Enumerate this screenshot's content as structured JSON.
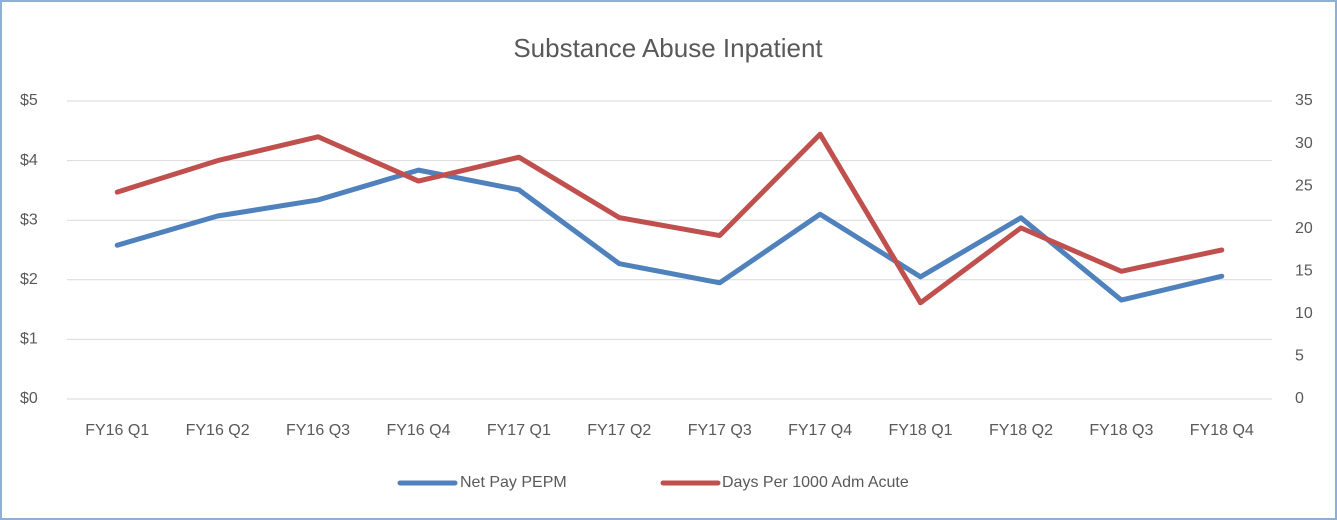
{
  "chart_data": {
    "type": "line",
    "title": "Substance Abuse Inpatient",
    "categories": [
      "FY16 Q1",
      "FY16 Q2",
      "FY16 Q3",
      "FY16 Q4",
      "FY17 Q1",
      "FY17 Q2",
      "FY17 Q3",
      "FY17 Q4",
      "FY18 Q1",
      "FY18 Q2",
      "FY18 Q3",
      "FY18 Q4"
    ],
    "series": [
      {
        "name": "Net Pay PEPM",
        "color": "#4f81bd",
        "values": [
          2.58,
          3.07,
          3.34,
          3.84,
          3.51,
          2.27,
          1.95,
          3.1,
          2.05,
          3.04,
          1.66,
          2.06
        ]
      },
      {
        "name": "Days Per 1000 Adm Acute",
        "color": "#c0504d",
        "axis": "y2",
        "values": [
          24.3,
          28.0,
          30.8,
          25.6,
          28.4,
          21.3,
          19.2,
          31.1,
          11.3,
          20.1,
          15.0,
          17.5
        ]
      }
    ],
    "ylim": [
      0,
      5
    ],
    "yticks": [
      {
        "value": 0,
        "label": "$0"
      },
      {
        "value": 1,
        "label": "$1"
      },
      {
        "value": 2,
        "label": "$2"
      },
      {
        "value": 3,
        "label": "$3"
      },
      {
        "value": 4,
        "label": "$4"
      },
      {
        "value": 5,
        "label": "$5"
      }
    ],
    "y2lim": [
      0,
      35
    ],
    "y2ticks": [
      0,
      5,
      10,
      15,
      20,
      25,
      30,
      35
    ],
    "grid": true,
    "legend": "bottom"
  }
}
